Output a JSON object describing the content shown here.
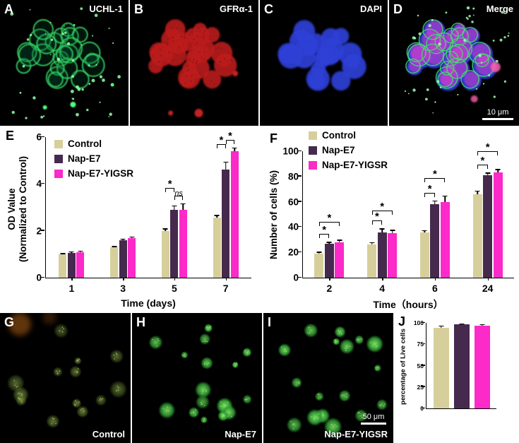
{
  "figure": {
    "panels": [
      {
        "id": "A",
        "letter": "A",
        "label": "UCHL-1"
      },
      {
        "id": "B",
        "letter": "B",
        "label": "GFRα-1"
      },
      {
        "id": "C",
        "letter": "C",
        "label": "DAPI"
      },
      {
        "id": "D",
        "letter": "D",
        "label": "Merge",
        "scale_bar": "10 μm"
      },
      {
        "id": "E",
        "letter": "E"
      },
      {
        "id": "F",
        "letter": "F"
      },
      {
        "id": "G",
        "letter": "G",
        "caption": "Control"
      },
      {
        "id": "H",
        "letter": "H",
        "caption": "Nap-E7"
      },
      {
        "id": "I",
        "letter": "I",
        "caption": "Nap-E7-YIGSR",
        "scale_bar": "50 μm"
      },
      {
        "id": "J",
        "letter": "J"
      }
    ]
  },
  "chart_data": [
    {
      "panel": "E",
      "type": "bar",
      "xlabel": "Time (days)",
      "ylabel": "OD Value\n(Normalized to Control)",
      "categories": [
        "1",
        "3",
        "5",
        "7"
      ],
      "series": [
        {
          "name": "Control",
          "color": "#d6cf9b",
          "values": [
            1.0,
            1.3,
            2.0,
            2.55
          ],
          "errors": [
            0.05,
            0.05,
            0.1,
            0.12
          ]
        },
        {
          "name": "Nap-E7",
          "color": "#452a4d",
          "values": [
            1.05,
            1.6,
            2.9,
            4.6
          ],
          "errors": [
            0.07,
            0.06,
            0.18,
            0.35
          ]
        },
        {
          "name": "Nap-E7-YIGSR",
          "color": "#fb2ac8",
          "values": [
            1.1,
            1.7,
            2.9,
            5.4
          ],
          "errors": [
            0.05,
            0.06,
            0.28,
            0.15
          ]
        }
      ],
      "ylim": [
        0,
        6
      ],
      "yticks": [
        0,
        2,
        4,
        6
      ],
      "legend_position": "top-left",
      "annotations": [
        {
          "group": 2,
          "from": 0,
          "to": 1,
          "label": "*",
          "level": 1
        },
        {
          "group": 2,
          "from": 1,
          "to": 2,
          "label": "ns",
          "level": 0
        },
        {
          "group": 3,
          "from": 0,
          "to": 1,
          "label": "*",
          "level": 1
        },
        {
          "group": 3,
          "from": 1,
          "to": 2,
          "label": "*",
          "level": 0
        }
      ]
    },
    {
      "panel": "F",
      "type": "bar",
      "xlabel": "Time（hours）",
      "ylabel": "Number of cells (%)",
      "categories": [
        "2",
        "4",
        "6",
        "24"
      ],
      "series": [
        {
          "name": "Control",
          "color": "#d6cf9b",
          "values": [
            19,
            26,
            36,
            66
          ],
          "errors": [
            1.5,
            2,
            1.5,
            3
          ]
        },
        {
          "name": "Nap-E7",
          "color": "#452a4d",
          "values": [
            27,
            36,
            58,
            81
          ],
          "errors": [
            1.5,
            3,
            3,
            2
          ]
        },
        {
          "name": "Nap-E7-YIGSR",
          "color": "#fb2ac8",
          "values": [
            28,
            35,
            60,
            83
          ],
          "errors": [
            2,
            3,
            5,
            3
          ]
        }
      ],
      "ylim": [
        0,
        100
      ],
      "yticks": [
        0,
        20,
        40,
        60,
        80,
        100
      ],
      "legend_position": "top-left",
      "annotations": [
        {
          "group": 0,
          "from": 0,
          "to": 1,
          "label": "*",
          "level": 0
        },
        {
          "group": 0,
          "from": 0,
          "to": 2,
          "label": "*",
          "level": 1
        },
        {
          "group": 1,
          "from": 0,
          "to": 1,
          "label": "*",
          "level": 0
        },
        {
          "group": 1,
          "from": 0,
          "to": 2,
          "label": "*",
          "level": 1
        },
        {
          "group": 2,
          "from": 0,
          "to": 1,
          "label": "*",
          "level": 0
        },
        {
          "group": 2,
          "from": 0,
          "to": 2,
          "label": "*",
          "level": 1
        },
        {
          "group": 3,
          "from": 0,
          "to": 1,
          "label": "*",
          "level": 0
        },
        {
          "group": 3,
          "from": 0,
          "to": 2,
          "label": "*",
          "level": 1
        }
      ]
    },
    {
      "panel": "J",
      "type": "bar",
      "xlabel": "",
      "ylabel": "percentage of Live cells",
      "categories": [
        ""
      ],
      "series": [
        {
          "name": "Control",
          "color": "#d6cf9b",
          "values": [
            94
          ],
          "errors": [
            3
          ]
        },
        {
          "name": "Nap-E7",
          "color": "#452a4d",
          "values": [
            98
          ],
          "errors": [
            1.5
          ]
        },
        {
          "name": "Nap-E7-YIGSR",
          "color": "#fb2ac8",
          "values": [
            97
          ],
          "errors": [
            1.5
          ]
        }
      ],
      "ylim": [
        0,
        100
      ],
      "yticks": [
        0,
        25,
        50,
        75,
        100
      ],
      "legend_position": "none",
      "annotations": []
    }
  ]
}
